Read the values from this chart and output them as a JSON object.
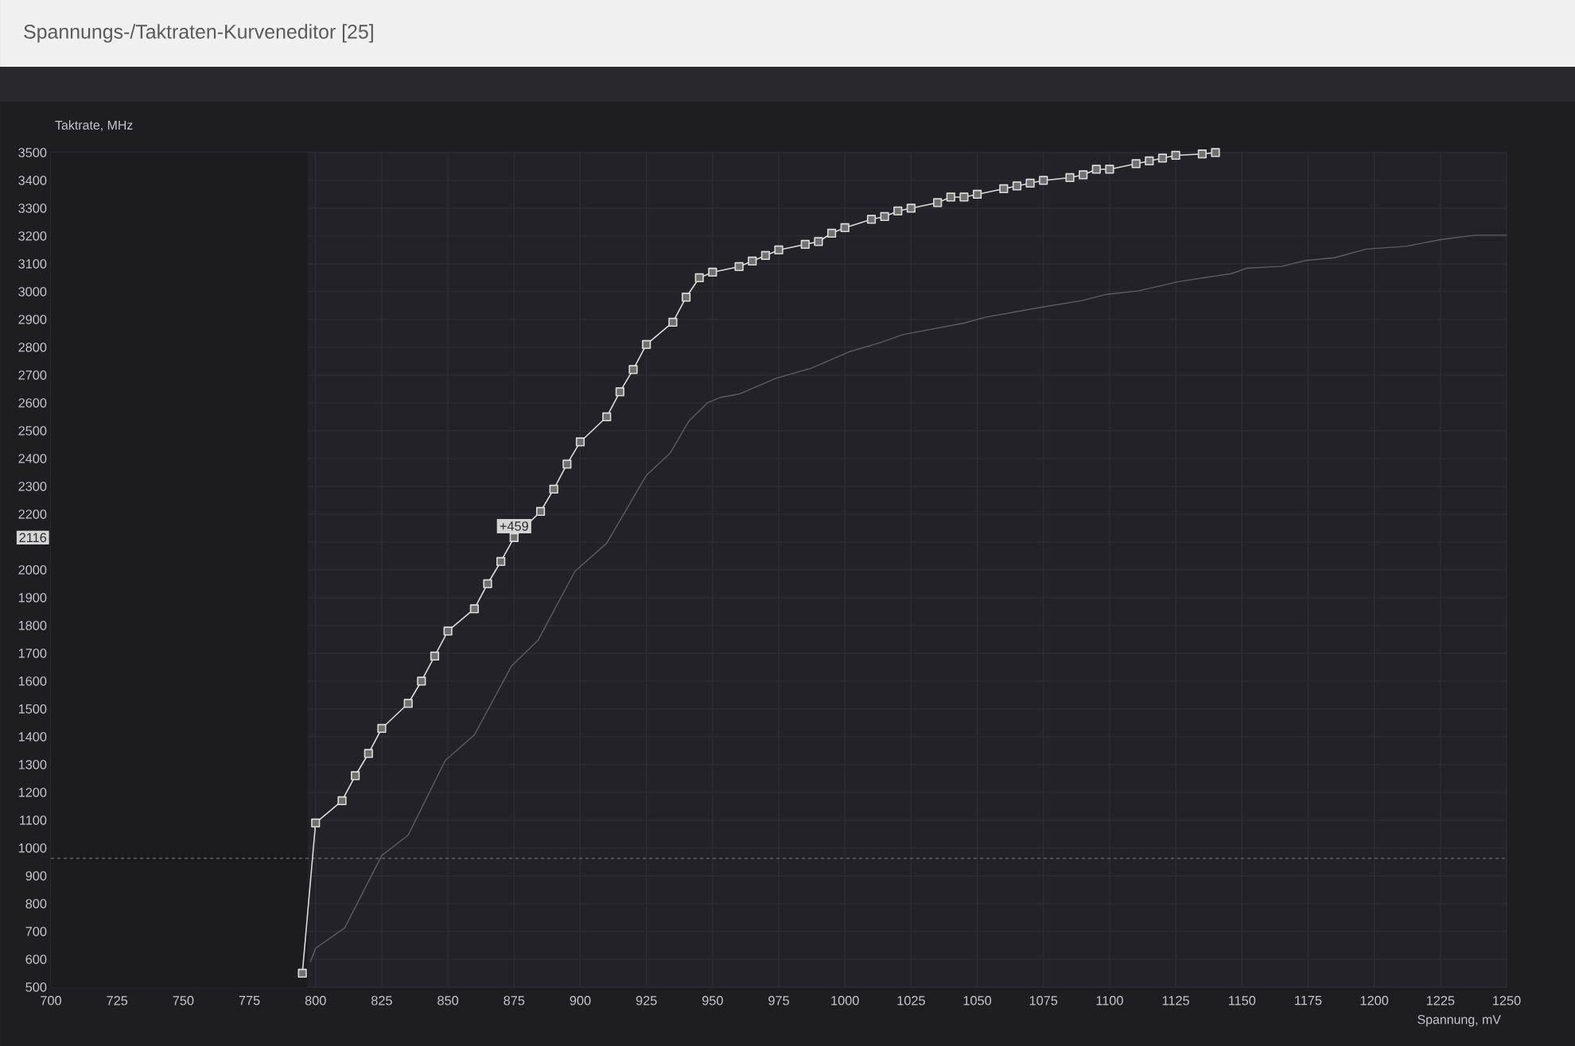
{
  "chart_data": {
    "type": "line",
    "title": "Spannungs-/Taktraten-Kurveneditor [25]",
    "xlabel": "Spannung, mV",
    "ylabel": "Taktrate, MHz",
    "xlim": [
      700,
      1250
    ],
    "ylim": [
      500,
      3500
    ],
    "xticks": [
      700,
      725,
      750,
      775,
      800,
      825,
      850,
      875,
      900,
      925,
      950,
      975,
      1000,
      1025,
      1050,
      1075,
      1100,
      1125,
      1150,
      1175,
      1200,
      1225,
      1250
    ],
    "yticks": [
      500,
      600,
      700,
      800,
      900,
      1000,
      1100,
      1200,
      1300,
      1400,
      1500,
      1600,
      1700,
      1800,
      1900,
      2000,
      {
        "value": 2100,
        "label": null
      },
      2200,
      2300,
      2400,
      2500,
      2600,
      2700,
      2800,
      2900,
      3000,
      3100,
      3200,
      3300,
      3400,
      3500
    ],
    "grid": true,
    "marker": "square",
    "series": [
      {
        "color": "#dcdcdc",
        "x": [
          795,
          800,
          810,
          815,
          820,
          825,
          835,
          840,
          845,
          850,
          860,
          865,
          870,
          875,
          885,
          890,
          895,
          900,
          910,
          915,
          920,
          925,
          935,
          940,
          945,
          950,
          960,
          965,
          970,
          975,
          985,
          990,
          995,
          1000,
          1010,
          1015,
          1020,
          1025,
          1035,
          1040,
          1045,
          1050,
          1060,
          1065,
          1070,
          1075,
          1085,
          1090,
          1095,
          1100,
          1110,
          1115,
          1120,
          1125,
          1135,
          1140
        ],
        "values": [
          550,
          1090,
          1170,
          1260,
          1340,
          1430,
          1520,
          1600,
          1690,
          1780,
          1860,
          1950,
          2030,
          2116,
          2210,
          2290,
          2380,
          2460,
          2550,
          2640,
          2720,
          2810,
          2890,
          2980,
          3050,
          3070,
          3090,
          3110,
          3130,
          3150,
          3170,
          3180,
          3210,
          3230,
          3260,
          3270,
          3290,
          3300,
          3320,
          3340,
          3340,
          3350,
          3370,
          3380,
          3390,
          3400,
          3410,
          3420,
          3440,
          3440,
          3460,
          3470,
          3480,
          3490,
          3495,
          3500
        ]
      },
      {
        "color": "#5c5c62",
        "marker": "none",
        "x": [
          798,
          800,
          811,
          825,
          835,
          849,
          860,
          874,
          884,
          898,
          910,
          925,
          934,
          941,
          948,
          953,
          960,
          974,
          987,
          1002,
          1013,
          1022,
          1045,
          1053,
          1073,
          1090,
          1098,
          1111,
          1126,
          1146,
          1152,
          1165,
          1174,
          1185,
          1197,
          1212,
          1225,
          1238,
          1250
        ],
        "values": [
          590,
          640,
          713,
          973,
          1047,
          1315,
          1407,
          1654,
          1746,
          1995,
          2096,
          2340,
          2420,
          2534,
          2600,
          2620,
          2632,
          2689,
          2724,
          2785,
          2816,
          2846,
          2887,
          2908,
          2942,
          2969,
          2989,
          3003,
          3036,
          3065,
          3085,
          3091,
          3112,
          3122,
          3153,
          3163,
          3187,
          3203,
          3203
        ]
      }
    ],
    "ref_lines": [
      {
        "axis": "y",
        "value": 963,
        "line_style": "dashed",
        "color": "#6a6a6e"
      }
    ],
    "bands": [
      {
        "axis": "x",
        "from": 700,
        "to": 797,
        "color": "#1c1c1f"
      }
    ],
    "annotations": [
      {
        "text": "+459",
        "x": 875,
        "y": 2116
      },
      {
        "text": "2116",
        "y": 2116
      }
    ]
  }
}
